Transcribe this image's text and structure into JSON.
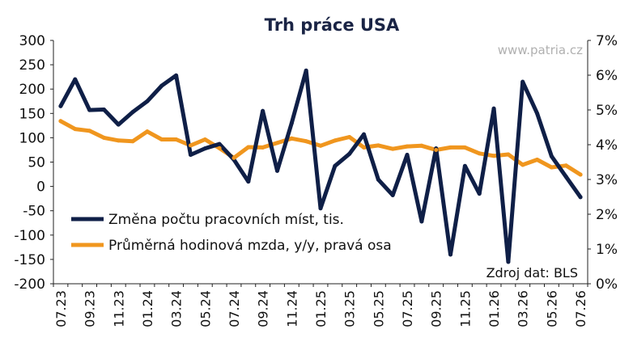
{
  "chart_data": {
    "type": "line",
    "title": "Trh práce USA",
    "watermark": "www.patria.cz",
    "source": "Zdroj dat: BLS",
    "grid": false,
    "legend_position": "bottom-left",
    "x": [
      "07.23",
      "08.23",
      "09.23",
      "10.23",
      "11.23",
      "12.23",
      "01.24",
      "02.24",
      "03.24",
      "04.24",
      "05.24",
      "06.24",
      "07.24",
      "08.24",
      "09.24",
      "10.24",
      "11.24",
      "12.24",
      "01.25",
      "02.25",
      "03.25",
      "04.25",
      "05.25",
      "06.25",
      "07.25",
      "08.25",
      "09.25",
      "10.25",
      "11.25",
      "12.25",
      "01.26",
      "02.26",
      "03.26",
      "04.26",
      "05.26",
      "06.26",
      "07.26"
    ],
    "x_tick_labels": [
      "07.23",
      "09.23",
      "11.23",
      "01.24",
      "03.24",
      "05.24",
      "07.24",
      "09.24",
      "11.24",
      "01.25",
      "03.25",
      "05.25",
      "07.25",
      "09.25",
      "11.25",
      "01.26",
      "03.26",
      "05.26",
      "07.26"
    ],
    "y_left": {
      "lim": [
        -200,
        300
      ],
      "ticks": [
        "300",
        "250",
        "200",
        "150",
        "100",
        "50",
        "0",
        "-50",
        "-100",
        "-150",
        "-200"
      ]
    },
    "y_right": {
      "lim": [
        0,
        7
      ],
      "ticks": [
        "7%",
        "6%",
        "5%",
        "4%",
        "3%",
        "2%",
        "1%",
        "0%"
      ]
    },
    "series": [
      {
        "name": "Změna počtu pracovních míst, tis.",
        "axis": "left",
        "color": "#0f1f47",
        "values": [
          165,
          220,
          157,
          158,
          127,
          153,
          175,
          207,
          228,
          65,
          78,
          87,
          55,
          10,
          155,
          32,
          130,
          238,
          -45,
          42,
          67,
          107,
          14,
          -18,
          65,
          -72,
          78,
          -140,
          42,
          -15,
          160,
          -155,
          215,
          150,
          62,
          20,
          -22
        ]
      },
      {
        "name": "Průměrná hodinová mzda, y/y, pravá osa",
        "axis": "right",
        "color": "#f0961e",
        "values": [
          4.68,
          4.45,
          4.4,
          4.2,
          4.12,
          4.1,
          4.38,
          4.15,
          4.15,
          3.98,
          4.15,
          3.9,
          3.62,
          3.93,
          3.92,
          4.05,
          4.18,
          4.1,
          3.97,
          4.12,
          4.22,
          3.92,
          3.98,
          3.88,
          3.95,
          3.97,
          3.85,
          3.92,
          3.92,
          3.75,
          3.68,
          3.72,
          3.42,
          3.57,
          3.35,
          3.4,
          3.14
        ]
      }
    ]
  }
}
